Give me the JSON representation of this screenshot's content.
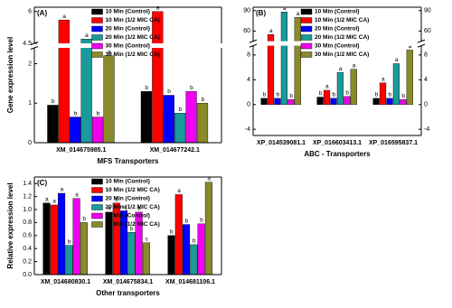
{
  "chart_data": [
    {
      "type": "bar",
      "panel": "(A)",
      "ylabel": "Gene expression level",
      "xlabel": "MFS Transporters",
      "categories": [
        "XM_014675985.1",
        "XM_014677242.1"
      ],
      "ylim": [
        0,
        6.2
      ],
      "y_break": [
        2.4,
        4.5
      ],
      "yticks": [
        0,
        1,
        2,
        4.5,
        6
      ],
      "legend": "upper center",
      "series": [
        {
          "name": "10 Min (Control)",
          "color": "#000000",
          "values": [
            0.95,
            1.3
          ],
          "letters": [
            "b",
            "b"
          ]
        },
        {
          "name": "10 Min (1/2 MIC CA)",
          "color": "#ff0000",
          "values": [
            5.6,
            6.0
          ],
          "letters": [
            "a",
            "a"
          ]
        },
        {
          "name": "20 Min (Control)",
          "color": "#0000ff",
          "values": [
            0.65,
            1.2
          ],
          "letters": [
            "b",
            "b"
          ]
        },
        {
          "name": "20 Min (1/2 MIC CA)",
          "color": "#1a9a9a",
          "values": [
            4.7,
            0.75
          ],
          "letters": [
            "a",
            "b"
          ]
        },
        {
          "name": "30 Min (Control)",
          "color": "#ee00ee",
          "values": [
            0.65,
            1.3
          ],
          "letters": [
            "b",
            "b"
          ]
        },
        {
          "name": "30 Min (1/2 MIC CA)",
          "color": "#8a8a2a",
          "values": [
            2.2,
            1.0
          ],
          "letters": [
            "a",
            "b"
          ]
        }
      ]
    },
    {
      "type": "bar",
      "panel": "(B)",
      "xlabel": "ABC - Transporters",
      "categories": [
        "XP_014539081.1",
        "XP_016603413.1",
        "XP_016595837.1"
      ],
      "ylim": [
        -5,
        95
      ],
      "y_break": [
        9.5,
        45
      ],
      "yticks": [
        -4,
        0,
        4,
        8,
        60,
        90
      ],
      "mirror_y_axis": true,
      "legend": "upper center",
      "series": [
        {
          "name": "10 Min (Control)",
          "color": "#000000",
          "values": [
            1.0,
            1.2,
            1.0
          ],
          "letters": [
            "b",
            "b",
            "b"
          ]
        },
        {
          "name": "10 Min (1/2 MIC CA)",
          "color": "#ff0000",
          "values": [
            55,
            2.3,
            3.5
          ],
          "letters": [
            "a",
            "a",
            "a"
          ]
        },
        {
          "name": "20 Min (Control)",
          "color": "#0000ff",
          "values": [
            1.0,
            1.0,
            1.0
          ],
          "letters": [
            "b",
            "b",
            "b"
          ]
        },
        {
          "name": "20 Min (1/2 MIC CA)",
          "color": "#1a9a9a",
          "values": [
            88,
            5.2,
            6.6
          ],
          "letters": [
            "a",
            "a",
            "a"
          ]
        },
        {
          "name": "30 Min (Control)",
          "color": "#ee00ee",
          "values": [
            0.8,
            1.3,
            0.8
          ],
          "letters": [
            "b",
            "b",
            "b"
          ]
        },
        {
          "name": "30 Min (1/2 MIC CA)",
          "color": "#8a8a2a",
          "values": [
            80,
            5.7,
            8.8
          ],
          "letters": [
            "a",
            "a",
            "a"
          ]
        }
      ]
    },
    {
      "type": "bar",
      "panel": "(C)",
      "ylabel": "Relative expression level",
      "xlabel": "Other transporters",
      "categories": [
        "XM_014680830.1",
        "XM_014675834.1",
        "XM_014681106.1"
      ],
      "ylim": [
        0,
        1.5
      ],
      "yticks": [
        {
          "value": 0,
          "label": "0.0"
        },
        0.2,
        0.4,
        0.6,
        0.8,
        {
          "value": 1,
          "label": "1.0"
        },
        1.2,
        1.4
      ],
      "legend": "upper center",
      "series": [
        {
          "name": "10 Min (Control)",
          "color": "#000000",
          "values": [
            1.1,
            0.96,
            0.6
          ],
          "letters": [
            "a",
            "a",
            "b"
          ]
        },
        {
          "name": "10 Min (1/2 MIC CA)",
          "color": "#ff0000",
          "values": [
            1.07,
            1.1,
            1.23
          ],
          "letters": [
            "a",
            "a",
            "a"
          ]
        },
        {
          "name": "20 Min (Control)",
          "color": "#0000ff",
          "values": [
            1.25,
            0.98,
            0.77
          ],
          "letters": [
            "a",
            "a",
            "b"
          ]
        },
        {
          "name": "20 Min (1/2 MIC CA)",
          "color": "#1a9a9a",
          "values": [
            0.45,
            0.65,
            0.46
          ],
          "letters": [
            "b",
            "b",
            "b"
          ]
        },
        {
          "name": "30 Min (Control)",
          "color": "#ee00ee",
          "values": [
            1.17,
            0.96,
            0.78
          ],
          "letters": [
            "a",
            "a",
            "b"
          ]
        },
        {
          "name": "30 Min (1/2 MIC CA)",
          "color": "#8a8a2a",
          "values": [
            0.8,
            0.49,
            1.42
          ],
          "letters": [
            "b",
            "c",
            "a"
          ]
        }
      ]
    }
  ]
}
